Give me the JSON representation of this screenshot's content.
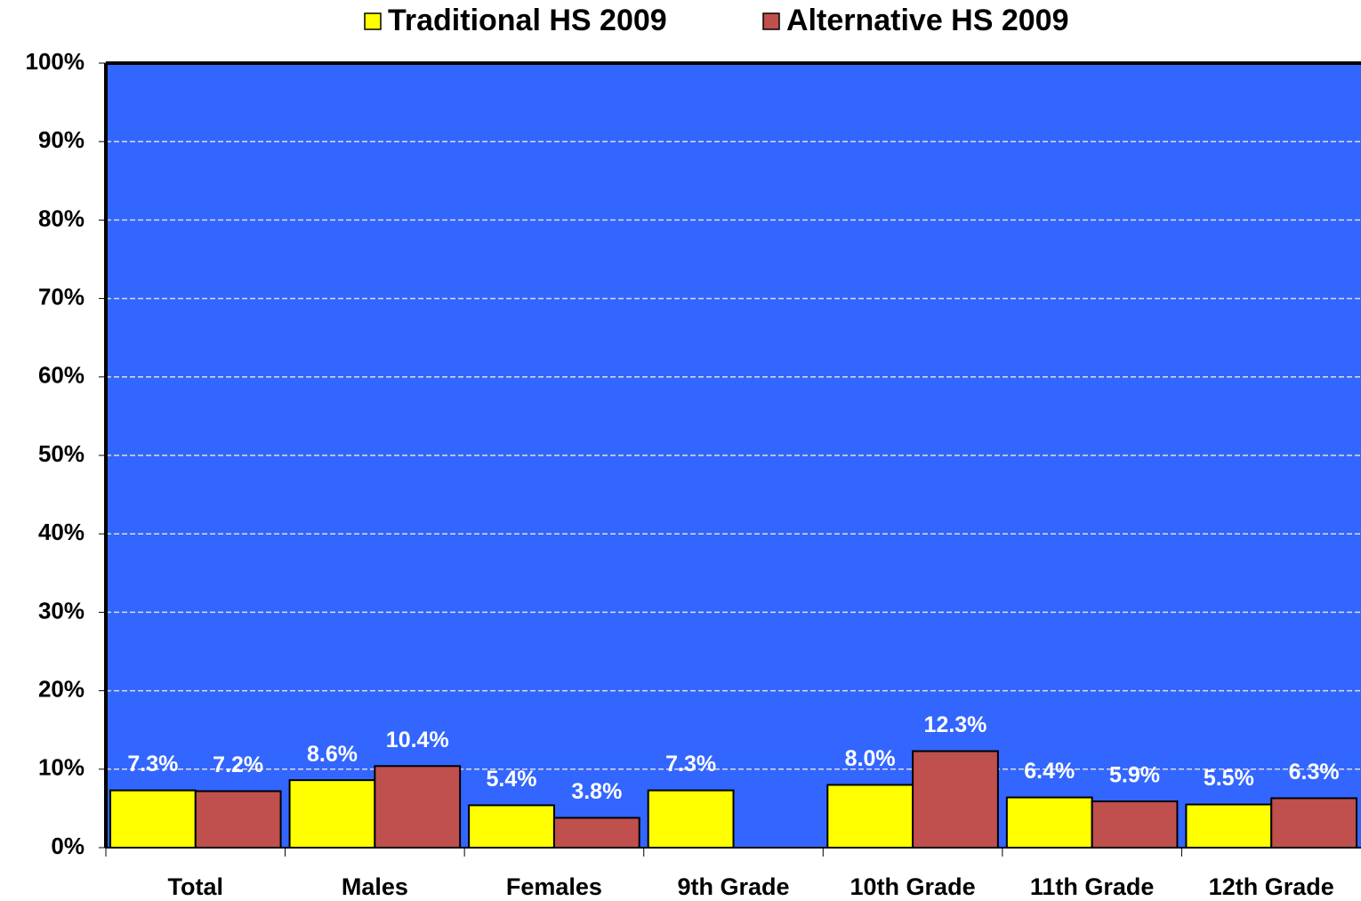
{
  "chart_data": {
    "type": "bar",
    "categories": [
      "Total",
      "Males",
      "Females",
      "9th Grade",
      "10th Grade",
      "11th Grade",
      "12th Grade"
    ],
    "series": [
      {
        "name": "Traditional HS 2009",
        "color": "#ffff00",
        "values": [
          7.3,
          8.6,
          5.4,
          7.3,
          8.0,
          6.4,
          5.5
        ],
        "value_labels": [
          "7.3%",
          "8.6%",
          "5.4%",
          "7.3%",
          "8.0%",
          "6.4%",
          "5.5%"
        ]
      },
      {
        "name": "Alternative HS 2009",
        "color": "#c0504d",
        "values": [
          7.2,
          10.4,
          3.8,
          null,
          12.3,
          5.9,
          6.3
        ],
        "value_labels": [
          "7.2%",
          "10.4%",
          "3.8%",
          null,
          "12.3%",
          "5.9%",
          "6.3%"
        ]
      }
    ],
    "ylim": [
      0,
      100
    ],
    "yticks": [
      {
        "value": 0,
        "label": "0%"
      },
      {
        "value": 10,
        "label": "10%"
      },
      {
        "value": 20,
        "label": "20%"
      },
      {
        "value": 30,
        "label": "30%"
      },
      {
        "value": 40,
        "label": "40%"
      },
      {
        "value": 50,
        "label": "50%"
      },
      {
        "value": 60,
        "label": "60%"
      },
      {
        "value": 70,
        "label": "70%"
      },
      {
        "value": 80,
        "label": "80%"
      },
      {
        "value": 90,
        "label": "90%"
      },
      {
        "value": 100,
        "label": "100%"
      }
    ],
    "grid": true,
    "legend": "top",
    "background": "#3366ff"
  }
}
